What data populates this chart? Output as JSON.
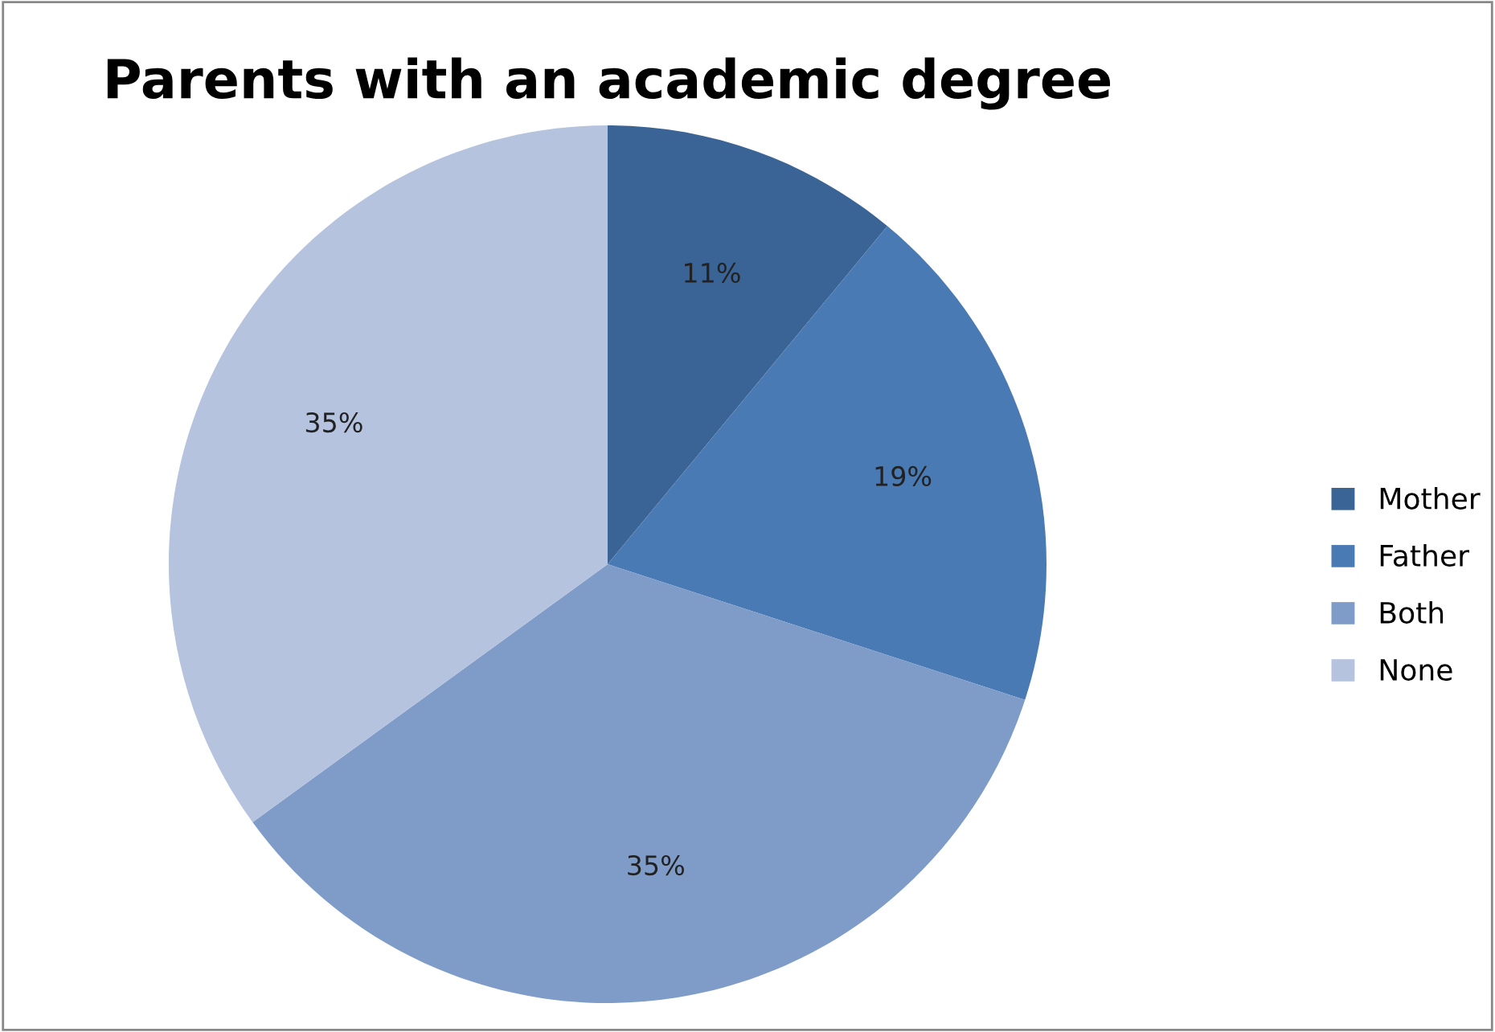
{
  "chart_data": {
    "type": "pie",
    "title": "Parents with an academic degree",
    "categories": [
      "Mother",
      "Father",
      "Both",
      "None"
    ],
    "values": [
      11,
      19,
      35,
      35
    ],
    "colors": [
      "#3b6496",
      "#4a7ab3",
      "#7f9cc8",
      "#b5c3de"
    ],
    "value_labels": [
      "11%",
      "19%",
      "35%",
      "35%"
    ],
    "legend": "right"
  }
}
